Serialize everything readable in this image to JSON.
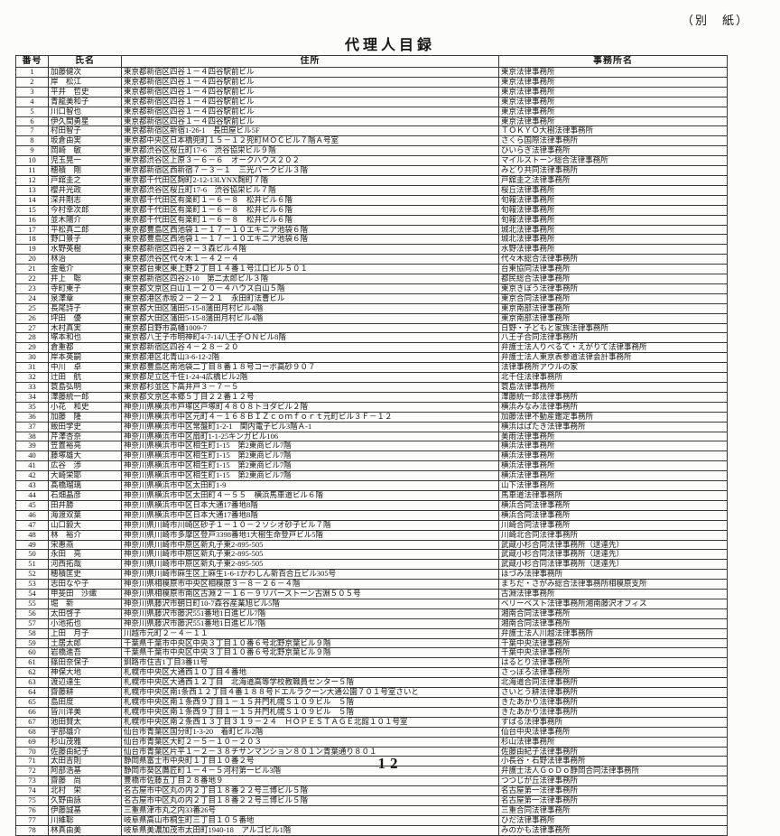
{
  "page": {
    "corner_note": "（別　紙）",
    "title": "代理人目録",
    "page_number": "12"
  },
  "table": {
    "headers": [
      "番号",
      "氏名",
      "住所",
      "事務所名"
    ],
    "rows": [
      [
        "1",
        "加藤健次",
        "東京都新宿区四谷１－４四谷駅前ビル",
        "東京法律事務所"
      ],
      [
        "2",
        "岸　松江",
        "東京都新宿区四谷１－４四谷駅前ビル",
        "東京法律事務所"
      ],
      [
        "3",
        "平井　哲史",
        "東京都新宿区四谷１－４四谷駅前ビル",
        "東京法律事務所"
      ],
      [
        "4",
        "青龍美和子",
        "東京都新宿区四谷１－４四谷駅前ビル",
        "東京法律事務所"
      ],
      [
        "5",
        "川口智也",
        "東京都新宿区四谷１－４四谷駅前ビル",
        "東京法律事務所"
      ],
      [
        "6",
        "伊久間勇星",
        "東京都新宿区四谷１－４四谷駅前ビル",
        "東京法律事務所"
      ],
      [
        "7",
        "村田智子",
        "東京都新宿区新宿1-26-1　長田屋ビル5F",
        "ＴＯＫＹＯ大樹法律事務所"
      ],
      [
        "8",
        "坂倉由実",
        "東京都中央区日本橋兜町１５－１２兜町ＭＯＣビル７階Ａ号室",
        "さくら国際法律事務所"
      ],
      [
        "9",
        "岡崎　敏",
        "東京都渋谷区桜丘町17-6　渋谷協栄ビル９階",
        "ひいらぎ法律事務所"
      ],
      [
        "10",
        "児玉晃一",
        "東京都渋谷区上原３－６－６　オークハウス２０２",
        "マイルストーン総合法律事務所"
      ],
      [
        "11",
        "穂積　剛",
        "東京都新宿区西新宿７－３－１　三光パークビル３階",
        "みどり共同法律事務所"
      ],
      [
        "12",
        "戸舘圭之",
        "東京都千代田区麹町2-12-13LYNX麹町７階",
        "戸舘圭之法律事務所"
      ],
      [
        "13",
        "櫻井光政",
        "東京都渋谷区桜丘町17-6　渋谷協栄ビル７階",
        "桜丘法律事務所"
      ],
      [
        "14",
        "深井剛志",
        "東京都千代田区有楽町１－６－８　松井ビル６階",
        "旬報法律事務所"
      ],
      [
        "15",
        "今村幸次郎",
        "東京都千代田区有楽町１－６－８　松井ビル６階",
        "旬報法律事務所"
      ],
      [
        "16",
        "並木陽介",
        "東京都千代田区有楽町１－６－８　松井ビル６階",
        "旬報法律事務所"
      ],
      [
        "17",
        "平松真二郎",
        "東京都豊島区西池袋１－１７－１０エキニア池袋６階",
        "城北法律事務所"
      ],
      [
        "18",
        "野口景子",
        "東京都豊島区西池袋１－１７－１０エキニア池袋６階",
        "城北法律事務所"
      ],
      [
        "19",
        "水野英樹",
        "東京都新宿区四谷２－３森ビル４階",
        "水野法律事務所"
      ],
      [
        "20",
        "林治",
        "東京都渋谷区代々木１－４２－４",
        "代々木総合法律事務所"
      ],
      [
        "21",
        "金竜介",
        "東京都台東区東上野２丁目１４番１号江口ビル５０１",
        "台東協同法律事務所"
      ],
      [
        "22",
        "井上　聡",
        "東京都新宿区四谷2-10　第二太郎ビル３階",
        "都民総合法律事務所"
      ],
      [
        "23",
        "寺町東子",
        "東京都文京区白山１－２０－４ハウス白山５階",
        "東京きぼう法律事務所"
      ],
      [
        "24",
        "泉澤章",
        "東京都港区赤坂２－２－２１　永田町法曹ビル",
        "東京合同法律事務所"
      ],
      [
        "25",
        "長尾詩子",
        "東京都大田区蒲田5-15-8蒲田月村ビル4階",
        "東京南部法律事務所"
      ],
      [
        "26",
        "坪田　優",
        "東京都大田区蒲田5-15-8蒲田月村ビル4階",
        "東京南部法律事務所"
      ],
      [
        "27",
        "木村真実",
        "東京都日野市高幡1009-7",
        "日野・子どもと家族法律事務所"
      ],
      [
        "28",
        "塚本和也",
        "東京都八王子市明神町4-7-14八王子ＯＮビル8階",
        "八王子合同法律事務所"
      ],
      [
        "29",
        "倉重都",
        "東京都新宿区四谷４－２８－２０",
        "弁護士法人りべるて・えがりて法律事務所"
      ],
      [
        "30",
        "岸本英嗣",
        "東京都港区北青山3-6-12-2階",
        "弁護士法人東京表参道法律会計事務所"
      ],
      [
        "31",
        "中川　卓",
        "東京都豊島区南池袋二丁目８番１８号コーポ高砂９０７",
        "法律事務所アウルの家"
      ],
      [
        "32",
        "辻田　航",
        "東京都足立区千住1-24-4広橋ビル2階",
        "北千住法律事務所"
      ],
      [
        "33",
        "蓑島弘明",
        "東京都杉並区下高井戸３－７－５",
        "蓑島法律事務所"
      ],
      [
        "34",
        "澤藤統一郎",
        "東京都文京区本郷５丁目２２番１２号",
        "澤藤統一郎法律事務所"
      ],
      [
        "35",
        "小花　和史",
        "神奈川県横浜市戸塚区戸塚町４８０８トヨダビル２階",
        "横浜みなみ法律事務所"
      ],
      [
        "36",
        "加藤　隆",
        "神奈川県横浜市中区元町４－１６８ＢＩＺｃｏｍｆｏｒｔ元町ビル３Ｆ－１２",
        "加藤法律不動産鑑定事務所"
      ],
      [
        "37",
        "飯田学史",
        "神奈川県横浜市中区常盤町1-2-1　関内電子ビル3階Ａ-1",
        "横浜はばたき法律事務所"
      ],
      [
        "38",
        "芹澤杏奈",
        "神奈川県横浜市中区扇町1-1-25キンガビル106",
        "美雨法律事務所"
      ],
      [
        "39",
        "笠置裕亮",
        "神奈川県横浜市中区相生町1-15　第2東商ビル7階",
        "横浜法律事務所"
      ],
      [
        "40",
        "藤塚雄大",
        "神奈川県横浜市中区相生町1-15　第2東商ビル7階",
        "横浜法律事務所"
      ],
      [
        "41",
        "広谷　渉",
        "神奈川県横浜市中区相生町1-15　第2東商ビル7階",
        "横浜法律事務所"
      ],
      [
        "42",
        "大崎栄耶",
        "神奈川県横浜市中区相生町1-15　第2東商ビル7階",
        "横浜法律事務所"
      ],
      [
        "43",
        "髙橋瑠璃",
        "神奈川県横浜市中区太田町1-9",
        "山下法律事務所"
      ],
      [
        "44",
        "石畑晶彦",
        "神奈川県横浜市中区太田町４－５５　横浜馬車道ビル６階",
        "馬車道法律事務所"
      ],
      [
        "45",
        "田井勝",
        "神奈川県横浜市中区日本大通17番地8階",
        "横浜合同法律事務所"
      ],
      [
        "46",
        "海渡双葉",
        "神奈川県横浜市中区日本大通17番地8階",
        "横浜合同法律事務所"
      ],
      [
        "47",
        "山口毅大",
        "神奈川県川崎市川崎区砂子１－１０－２ソシオ砂子ビル７階",
        "川崎合同法律事務所"
      ],
      [
        "48",
        "林　裕介",
        "神奈川県川崎市多摩区登戸3398番地1大樹生命登戸ビル5階",
        "川崎北合同法律事務所"
      ],
      [
        "49",
        "宋惠燕",
        "神奈川県川崎市中原区新丸子東2-895-505",
        "武蔵小杉合同法律事務所（送達先）"
      ],
      [
        "50",
        "永田　亮",
        "神奈川県川崎市中原区新丸子東2-895-505",
        "武蔵小杉合同法律事務所（送達先）"
      ],
      [
        "51",
        "河西拓哉",
        "神奈川県川崎市中原区新丸子東2-895-505",
        "武蔵小杉合同法律事務所（送達先）"
      ],
      [
        "52",
        "穂積匡史",
        "神奈川県川崎市麻生区上麻生1-6-1かわしん新百合丘ビル305号",
        "ほづみ法律事務所"
      ],
      [
        "53",
        "志田なや子",
        "神奈川県相模原市中央区相模原３－８－２６－４階",
        "まちだ・さがみ総合法律事務所相模原支所"
      ],
      [
        "54",
        "甲斐田　沙織",
        "神奈川県相模原市南区古淵２－１６－９リバーストーン古淵５０５号",
        "古淵法律事務所"
      ],
      [
        "55",
        "堀　新",
        "神奈川県藤沢市朝日町10-7森谷産業旭ビル5階",
        "ベリーベスト法律事務所湘南藤沢オフィス"
      ],
      [
        "56",
        "太田啓子",
        "神奈川県藤沢市藤沢551番地1日進ビル7階",
        "湘南合同法律事務所"
      ],
      [
        "57",
        "小池拓也",
        "神奈川県藤沢市藤沢551番地1日進ビル7階",
        "湘南合同法律事務所"
      ],
      [
        "58",
        "上田　月子",
        "川越市元町２－４－１１",
        "弁護士法人川越法律事務所"
      ],
      [
        "59",
        "土居太郎",
        "千葉県千葉市中央区中央３丁目１０番６号北野京葉ビル９階",
        "千葉中央法律事務所"
      ],
      [
        "60",
        "岩橋進吾",
        "千葉県千葉市中央区中央３丁目１０番６号北野京葉ビル９階",
        "千葉中央法律事務所"
      ],
      [
        "61",
        "篠田奈保子",
        "釧路市住吉1丁目3番11号",
        "はるとり法律事務所"
      ],
      [
        "62",
        "神保大地",
        "札幌市中央区大通西１０丁目４番地",
        "さっぽろ法律事務所"
      ],
      [
        "63",
        "渡辺達生",
        "札幌市中央区大通西１２丁目　北海道高等学校教職員センター５階",
        "北海道合同法律事務所"
      ],
      [
        "64",
        "齋藤耕",
        "札幌市中央区南1条西１２丁目４番１８８号ドエルラクーン大通公園７０１号室さいと",
        "さいとう耕法律事務所"
      ],
      [
        "65",
        "島田度",
        "札幌市中央区南１条西９丁目１－１５井門札幌Ｓ１０９ビル　５階",
        "きたあかり法律事務所"
      ],
      [
        "66",
        "皆川洋美",
        "札幌市中央区南１条西９丁目１－１５井門札幌Ｓ１０９ビル　５階",
        "きたあかり法律事務所"
      ],
      [
        "67",
        "池田賢太",
        "札幌市中央区南２条西１３丁目３１９－２４　ＨＯＰＥＳＴＡＧＥ北館１０１号室",
        "すばる法律事務所"
      ],
      [
        "68",
        "宇部雄介",
        "仙台市青葉区国分町1-3-20　着町ビル2階",
        "仙台中央法律事務所"
      ],
      [
        "69",
        "杉山茂雅",
        "仙台市青葉区大町２－５－１０－２０３",
        "杉山法律事務所"
      ],
      [
        "70",
        "佐藤由紀子",
        "仙台市青葉区片平１－２－３８チサンマンション８０１ン青葉通り８０１",
        "佐藤由紀子法律事務所"
      ],
      [
        "71",
        "太田吉則",
        "静岡県富士市中央町１丁目１０番２号",
        "小長谷・石野法律事務所"
      ],
      [
        "72",
        "阿部浩基",
        "静岡市葵区鷹匠町１－４－５河村第一ビル3階",
        "弁護士法人ＧｏＤｏ静岡合同法律事務所"
      ],
      [
        "73",
        "齋藤　尚",
        "豊橋市佐藤五丁目２８番地９",
        "つつじが丘法律事務所"
      ],
      [
        "74",
        "北村　栄",
        "名古屋市中区丸の内２丁目１８番２２号三博ビル５階",
        "名古屋第一法律事務所"
      ],
      [
        "75",
        "久野由詠",
        "名古屋市中区丸の内２丁目１８番２２号三博ビル５階",
        "名古屋第一法律事務所"
      ],
      [
        "76",
        "伊藤誠基",
        "三重県津市丸之内33番26号",
        "三重合同法律事務所"
      ],
      [
        "77",
        "川維聡",
        "岐阜県高山市桐生町三丁目１０５番地",
        "ひだ法律事務所"
      ],
      [
        "78",
        "林真由美",
        "岐阜県美濃加茂市太田町1940-18　アルゴビル1階",
        "みのかも法律事務所"
      ]
    ]
  }
}
